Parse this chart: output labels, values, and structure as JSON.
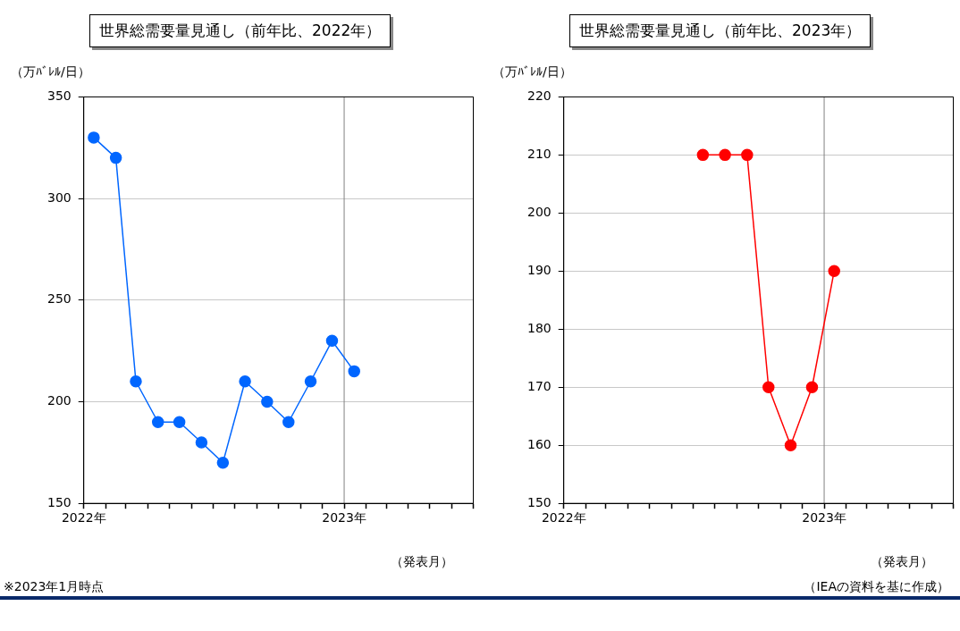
{
  "chart_data": [
    {
      "type": "line",
      "title": "世界総需要量見通し（前年比、2022年）",
      "ylabel": "（万ﾊﾞﾚﾙ/日）",
      "xlabel": "（発表月）",
      "annotations": [
        "※2023年1月時点"
      ],
      "x": [
        "2022-01-15",
        "2022-02-15",
        "2022-03-15",
        "2022-04-15",
        "2022-05-15",
        "2022-06-15",
        "2022-07-15",
        "2022-08-15",
        "2022-09-15",
        "2022-10-15",
        "2022-11-15",
        "2022-12-15",
        "2023-01-15"
      ],
      "series": [
        {
          "color": "#0066ff",
          "values": [
            330,
            320,
            210,
            190,
            190,
            180,
            170,
            210,
            200,
            190,
            210,
            230,
            215
          ]
        }
      ],
      "xlim": [
        "2022-01",
        "2023-07"
      ],
      "xticks": [
        {
          "value": "2022-01",
          "label": "2022年"
        },
        {
          "value": "2022-02",
          "label": null
        },
        {
          "value": "2022-03",
          "label": null
        },
        {
          "value": "2022-04",
          "label": null
        },
        {
          "value": "2022-05",
          "label": null
        },
        {
          "value": "2022-06",
          "label": null
        },
        {
          "value": "2022-07",
          "label": null
        },
        {
          "value": "2022-08",
          "label": null
        },
        {
          "value": "2022-09",
          "label": null
        },
        {
          "value": "2022-10",
          "label": null
        },
        {
          "value": "2022-11",
          "label": null
        },
        {
          "value": "2022-12",
          "label": null
        },
        {
          "value": "2023-01",
          "label": "2023年"
        },
        {
          "value": "2023-02",
          "label": null
        },
        {
          "value": "2023-03",
          "label": null
        },
        {
          "value": "2023-04",
          "label": null
        },
        {
          "value": "2023-05",
          "label": null
        },
        {
          "value": "2023-06",
          "label": null
        },
        {
          "value": "2023-07",
          "label": null
        }
      ],
      "ylim": [
        150,
        350
      ],
      "yticks": [
        150,
        200,
        250,
        300,
        350
      ],
      "grid": "y",
      "ref_lines": [
        {
          "axis": "x",
          "value": "2023-01",
          "color": "#808080"
        }
      ],
      "legend": false,
      "marker": "circle",
      "line_style": "solid"
    },
    {
      "type": "line",
      "title": "世界総需要量見通し（前年比、2023年）",
      "ylabel": "（万ﾊﾞﾚﾙ/日）",
      "xlabel": "（発表月）",
      "annotations": [
        "（IEAの資料を基に作成）"
      ],
      "x": [
        "2022-07-15",
        "2022-08-15",
        "2022-09-15",
        "2022-10-15",
        "2022-11-15",
        "2022-12-15",
        "2023-01-15"
      ],
      "series": [
        {
          "color": "#ff0000",
          "values": [
            210,
            210,
            210,
            170,
            160,
            170,
            190
          ]
        }
      ],
      "xlim": [
        "2022-01",
        "2023-07"
      ],
      "xticks": [
        {
          "value": "2022-01",
          "label": "2022年"
        },
        {
          "value": "2022-02",
          "label": null
        },
        {
          "value": "2022-03",
          "label": null
        },
        {
          "value": "2022-04",
          "label": null
        },
        {
          "value": "2022-05",
          "label": null
        },
        {
          "value": "2022-06",
          "label": null
        },
        {
          "value": "2022-07",
          "label": null
        },
        {
          "value": "2022-08",
          "label": null
        },
        {
          "value": "2022-09",
          "label": null
        },
        {
          "value": "2022-10",
          "label": null
        },
        {
          "value": "2022-11",
          "label": null
        },
        {
          "value": "2022-12",
          "label": null
        },
        {
          "value": "2023-01",
          "label": "2023年"
        },
        {
          "value": "2023-02",
          "label": null
        },
        {
          "value": "2023-03",
          "label": null
        },
        {
          "value": "2023-04",
          "label": null
        },
        {
          "value": "2023-05",
          "label": null
        },
        {
          "value": "2023-06",
          "label": null
        },
        {
          "value": "2023-07",
          "label": null
        }
      ],
      "ylim": [
        150,
        220
      ],
      "yticks": [
        150,
        160,
        170,
        180,
        190,
        200,
        210,
        220
      ],
      "grid": "y",
      "ref_lines": [
        {
          "axis": "x",
          "value": "2023-01",
          "color": "#808080"
        }
      ],
      "legend": false,
      "marker": "circle",
      "line_style": "solid"
    }
  ]
}
